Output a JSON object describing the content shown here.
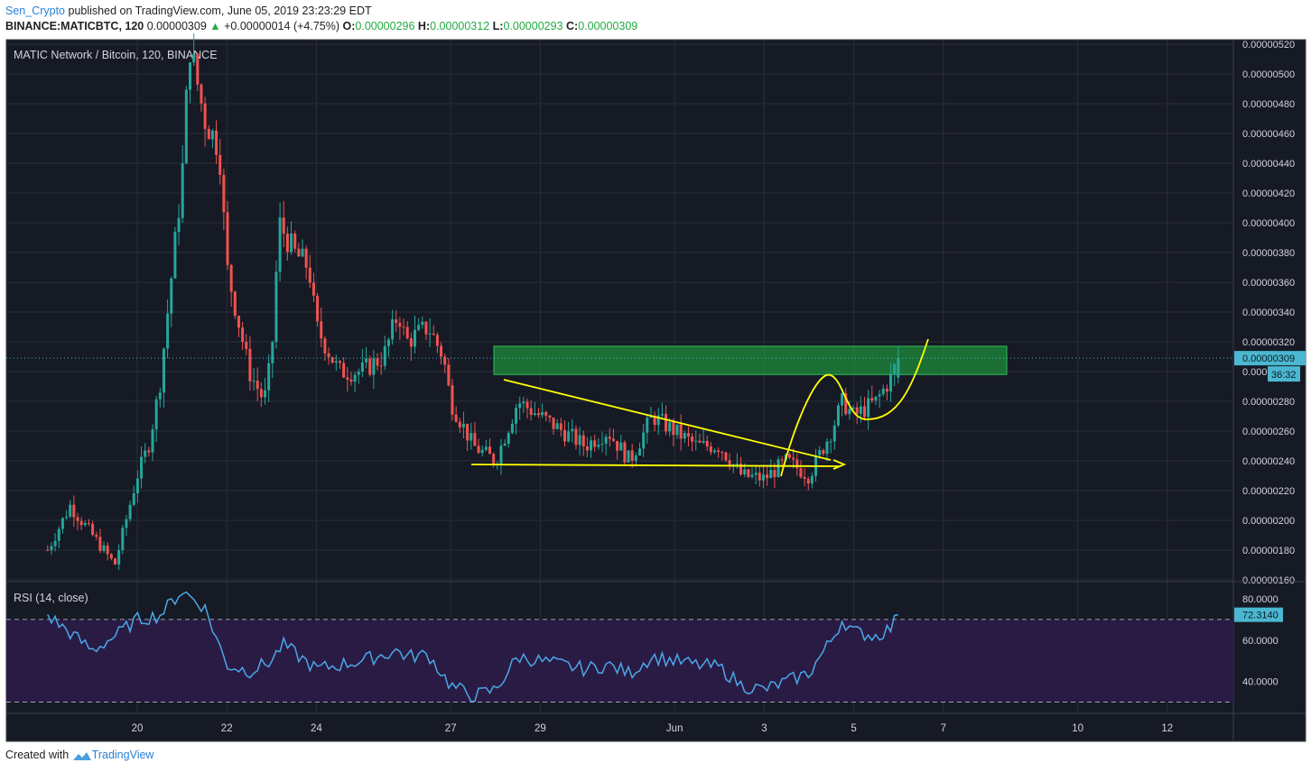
{
  "header": {
    "author": "Sen_Crypto",
    "published": "published on TradingView.com, June 05, 2019 23:23:29 EDT",
    "symbol": "BINANCE:MATICBTC, 120",
    "last": "0.00000309",
    "change_arrow": "▲",
    "change": "+0.00000014 (+4.75%)",
    "o_label": "O:",
    "o": "0.00000296",
    "h_label": "H:",
    "h": "0.00000312",
    "l_label": "L:",
    "l": "0.00000293",
    "c_label": "C:",
    "c": "0.00000309"
  },
  "footer": {
    "created": "Created with",
    "brand": "TradingView"
  },
  "colors": {
    "bg": "#161a25",
    "up": "#26a69a",
    "down": "#ef5350",
    "grid": "#2a2e39",
    "axis_text": "#d1d4dc",
    "drawing": "#ffff00",
    "zone": "#1e8c3a",
    "rsi_line": "#4aa8e8",
    "rsi_band": "#2a1b45",
    "price_label": "#4bb7d0"
  },
  "chart_data": [
    {
      "type": "candlestick",
      "title": "MATIC Network / Bitcoin, 120, BINANCE",
      "x_ticks": [
        "20",
        "22",
        "24",
        "27",
        "29",
        "Jun",
        "3",
        "5",
        "7",
        "10",
        "12"
      ],
      "y_ticks": [
        "0.00000160",
        "0.00000180",
        "0.00000200",
        "0.00000220",
        "0.00000240",
        "0.00000260",
        "0.00000280",
        "0.00000300",
        "0.00000320",
        "0.00000340",
        "0.00000360",
        "0.00000380",
        "0.00000400",
        "0.00000420",
        "0.00000440",
        "0.00000460",
        "0.00000480",
        "0.00000500",
        "0.00000520"
      ],
      "ylim": [
        1.6e-06,
        5.23e-06
      ],
      "last_price": 3.09e-06,
      "last_price_label": "0.00000309",
      "countdown": "36:32",
      "close_path": [
        [
          "2019-05-18",
          1.8e-06
        ],
        [
          "2019-05-18 12:00",
          2.1e-06
        ],
        [
          "2019-05-19",
          1.9e-06
        ],
        [
          "2019-05-19 12:00",
          1.7e-06
        ],
        [
          "2019-05-20",
          2.3e-06
        ],
        [
          "2019-05-20 06:00",
          2.5e-06
        ],
        [
          "2019-05-20 12:00",
          2.9e-06
        ],
        [
          "2019-05-20 18:00",
          3.6e-06
        ],
        [
          "2019-05-21",
          4.3e-06
        ],
        [
          "2019-05-21 04:00",
          5.2e-06
        ],
        [
          "2019-05-21 12:00",
          4.7e-06
        ],
        [
          "2019-05-21 20:00",
          4.5e-06
        ],
        [
          "2019-05-22",
          3.7e-06
        ],
        [
          "2019-05-22 12:00",
          3e-06
        ],
        [
          "2019-05-22 20:00",
          2.8e-06
        ],
        [
          "2019-05-23",
          3.1e-06
        ],
        [
          "2019-05-23 04:00",
          4e-06
        ],
        [
          "2019-05-23 12:00",
          3.8e-06
        ],
        [
          "2019-05-23 20:00",
          3.7e-06
        ],
        [
          "2019-05-24",
          3.3e-06
        ],
        [
          "2019-05-24 12:00",
          3e-06
        ],
        [
          "2019-05-25",
          3e-06
        ],
        [
          "2019-05-25 12:00",
          3.1e-06
        ],
        [
          "2019-05-25 20:00",
          3.4e-06
        ],
        [
          "2019-05-26",
          3.2e-06
        ],
        [
          "2019-05-26 12:00",
          3.3e-06
        ],
        [
          "2019-05-26 20:00",
          3.1e-06
        ],
        [
          "2019-05-27",
          2.8e-06
        ],
        [
          "2019-05-27 12:00",
          2.5e-06
        ],
        [
          "2019-05-28",
          2.4e-06
        ],
        [
          "2019-05-28 12:00",
          2.8e-06
        ],
        [
          "2019-05-29",
          2.7e-06
        ],
        [
          "2019-05-29 12:00",
          2.6e-06
        ],
        [
          "2019-05-30",
          2.5e-06
        ],
        [
          "2019-05-30 12:00",
          2.6e-06
        ],
        [
          "2019-05-31",
          2.4e-06
        ],
        [
          "2019-05-31 12:00",
          2.7e-06
        ],
        [
          "2019-06-01",
          2.6e-06
        ],
        [
          "2019-06-01 12:00",
          2.5e-06
        ],
        [
          "2019-06-02",
          2.5e-06
        ],
        [
          "2019-06-02 12:00",
          2.3e-06
        ],
        [
          "2019-06-03",
          2.28e-06
        ],
        [
          "2019-06-03 12:00",
          2.4e-06
        ],
        [
          "2019-06-04",
          2.3e-06
        ],
        [
          "2019-06-04 12:00",
          2.6e-06
        ],
        [
          "2019-06-04 18:00",
          2.8e-06
        ],
        [
          "2019-06-05",
          2.7e-06
        ],
        [
          "2019-06-05 12:00",
          2.8e-06
        ],
        [
          "2019-06-05 20:00",
          2.96e-06
        ],
        [
          "2019-06-06",
          3.09e-06
        ]
      ],
      "resistance_zone": [
        2.98e-06,
        3.17e-06
      ],
      "annotations": [
        "descending triangle",
        "breakout arrow",
        "projected path"
      ]
    },
    {
      "type": "line",
      "title": "RSI (14, close)",
      "y_ticks": [
        "40.0000",
        "60.0000",
        "80.0000"
      ],
      "ylim": [
        25,
        87
      ],
      "band": [
        30,
        70
      ],
      "last_value": 72.314,
      "last_label": "72.3140",
      "path": [
        [
          "2019-05-18",
          72
        ],
        [
          "2019-05-19",
          55
        ],
        [
          "2019-05-19 12:00",
          62
        ],
        [
          "2019-05-20",
          70
        ],
        [
          "2019-05-20 12:00",
          72
        ],
        [
          "2019-05-21",
          84
        ],
        [
          "2019-05-21 12:00",
          76
        ],
        [
          "2019-05-22",
          48
        ],
        [
          "2019-05-22 12:00",
          45
        ],
        [
          "2019-05-23",
          50
        ],
        [
          "2019-05-23 06:00",
          58
        ],
        [
          "2019-05-23 12:00",
          54
        ],
        [
          "2019-05-24",
          46
        ],
        [
          "2019-05-25",
          50
        ],
        [
          "2019-05-25 20:00",
          55
        ],
        [
          "2019-05-26",
          52
        ],
        [
          "2019-05-26 12:00",
          53
        ],
        [
          "2019-05-27",
          38
        ],
        [
          "2019-05-27 12:00",
          33
        ],
        [
          "2019-05-28",
          36
        ],
        [
          "2019-05-28 12:00",
          52
        ],
        [
          "2019-05-29",
          50
        ],
        [
          "2019-05-29 12:00",
          48
        ],
        [
          "2019-05-30",
          46
        ],
        [
          "2019-05-30 12:00",
          48
        ],
        [
          "2019-05-31",
          44
        ],
        [
          "2019-05-31 12:00",
          52
        ],
        [
          "2019-06-01",
          50
        ],
        [
          "2019-06-01 12:00",
          48
        ],
        [
          "2019-06-02",
          47
        ],
        [
          "2019-06-02 12:00",
          38
        ],
        [
          "2019-06-03",
          36
        ],
        [
          "2019-06-03 12:00",
          40
        ],
        [
          "2019-06-04",
          44
        ],
        [
          "2019-06-04 12:00",
          60
        ],
        [
          "2019-06-04 18:00",
          70
        ],
        [
          "2019-06-05",
          64
        ],
        [
          "2019-06-05 12:00",
          62
        ],
        [
          "2019-06-05 20:00",
          66
        ],
        [
          "2019-06-06",
          72.314
        ]
      ]
    }
  ]
}
